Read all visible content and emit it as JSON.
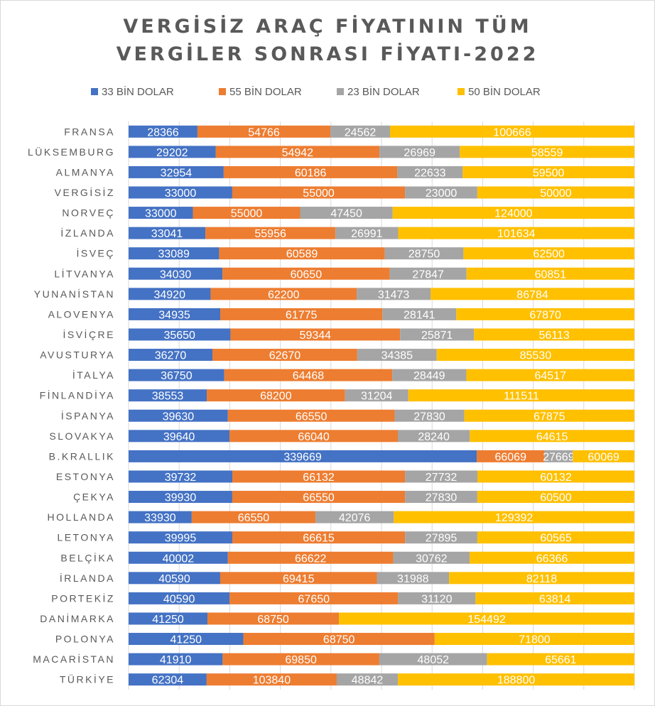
{
  "chart_data": {
    "type": "bar",
    "orientation": "horizontal",
    "stacking": "percent",
    "title": [
      "VERGİSİZ ARAÇ FİYATININ TÜM",
      "VERGİLER SONRASI FİYATI-2022"
    ],
    "legend_position": "top",
    "grid": true,
    "categories": [
      "FRANSA",
      "LÜKSEMBURG",
      "ALMANYA",
      "VERGİSİZ",
      "NORVEÇ",
      "İZLANDA",
      "İSVEÇ",
      "LİTVANYA",
      "YUNANİSTAN",
      "ALOVENYA",
      "İSVİÇRE",
      "AVUSTURYA",
      "İTALYA",
      "FİNLANDİYA",
      "İSPANYA",
      "SLOVAKYA",
      "B.KRALLIK",
      "ESTONYA",
      "ÇEKYA",
      "HOLLANDA",
      "LETONYA",
      "BELÇİKA",
      "İRLANDA",
      "PORTEKİZ",
      "DANİMARKA",
      "POLONYA",
      "MACARİSTAN",
      "TÜRKİYE"
    ],
    "series": [
      {
        "name": "33 BİN DOLAR",
        "color": "#4472C4",
        "values": [
          28366,
          29202,
          32954,
          33000,
          33000,
          33041,
          33089,
          34030,
          34920,
          34935,
          35650,
          36270,
          36750,
          38553,
          39630,
          39640,
          339669,
          39732,
          39930,
          33930,
          39995,
          40002,
          40590,
          40590,
          41250,
          41250,
          41910,
          62304
        ]
      },
      {
        "name": "55 BİN DOLAR",
        "color": "#ED7D31",
        "values": [
          54766,
          54942,
          60186,
          55000,
          55000,
          55956,
          60589,
          60650,
          62200,
          61775,
          59344,
          62670,
          64468,
          68200,
          66550,
          66040,
          66069,
          66132,
          66550,
          66550,
          66615,
          66622,
          69415,
          67650,
          68750,
          68750,
          69850,
          103840
        ]
      },
      {
        "name": "23 BİN DOLAR",
        "color": "#A5A5A5",
        "values": [
          24562,
          26969,
          22633,
          23000,
          47450,
          26991,
          28750,
          27847,
          31473,
          28141,
          25871,
          34385,
          28449,
          31204,
          27830,
          28240,
          27669,
          27732,
          27830,
          42076,
          27895,
          30762,
          31988,
          31120,
          null,
          null,
          48052,
          48842
        ]
      },
      {
        "name": "50 BİN DOLAR",
        "color": "#FFC000",
        "values": [
          100666,
          58559,
          59500,
          50000,
          124000,
          101634,
          62500,
          60851,
          86784,
          67870,
          56113,
          85530,
          64517,
          111511,
          67875,
          64615,
          60069,
          60132,
          60500,
          129392,
          60565,
          66366,
          82118,
          63814,
          154492,
          71800,
          65661,
          188800
        ]
      }
    ]
  }
}
